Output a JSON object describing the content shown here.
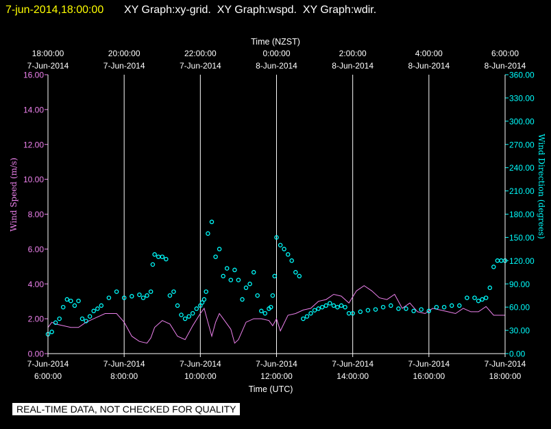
{
  "header": {
    "timestamp": "7-jun-2014,18:00:00",
    "graphs": "XY Graph:xy-grid.  XY Graph:wspd.  XY Graph:wdir."
  },
  "notice": "REAL-TIME DATA, NOT CHECKED FOR QUALITY",
  "colors": {
    "background": "#000000",
    "timestamp": "#ffff00",
    "wind_speed": "#ee82ee",
    "wind_direction": "#00ffff",
    "grid": "#ffffff"
  },
  "chart_data": {
    "type": "line",
    "title": "",
    "top_axis": {
      "label": "Time (NZST)",
      "ticks": [
        {
          "time": "18:00:00",
          "date": "7-Jun-2014"
        },
        {
          "time": "20:00:00",
          "date": "7-Jun-2014"
        },
        {
          "time": "22:00:00",
          "date": "7-Jun-2014"
        },
        {
          "time": "0:00:00",
          "date": "8-Jun-2014"
        },
        {
          "time": "2:00:00",
          "date": "8-Jun-2014"
        },
        {
          "time": "4:00:00",
          "date": "8-Jun-2014"
        },
        {
          "time": "6:00:00",
          "date": "8-Jun-2014"
        }
      ]
    },
    "bottom_axis": {
      "label": "Time (UTC)",
      "ticks": [
        {
          "date": "7-Jun-2014",
          "time": "6:00:00"
        },
        {
          "date": "7-Jun-2014",
          "time": "8:00:00"
        },
        {
          "date": "7-Jun-2014",
          "time": "10:00:00"
        },
        {
          "date": "7-Jun-2014",
          "time": "12:00:00"
        },
        {
          "date": "7-Jun-2014",
          "time": "14:00:00"
        },
        {
          "date": "7-Jun-2014",
          "time": "16:00:00"
        },
        {
          "date": "7-Jun-2014",
          "time": "18:00:00"
        }
      ],
      "xlim": [
        6,
        18
      ]
    },
    "left_axis": {
      "label": "Wind Speed (m/s)",
      "ylim": [
        0,
        16
      ],
      "ticks": [
        "0.00",
        "2.00",
        "4.00",
        "6.00",
        "8.00",
        "10.00",
        "12.00",
        "14.00",
        "16.00"
      ]
    },
    "right_axis": {
      "label": "Wind Direction (degrees)",
      "ylim": [
        0,
        360
      ],
      "ticks": [
        "0.00",
        "30.00",
        "60.00",
        "90.00",
        "120.00",
        "150.00",
        "180.00",
        "210.00",
        "240.00",
        "270.00",
        "300.00",
        "330.00",
        "360.00"
      ]
    },
    "grid": "vertical",
    "series": [
      {
        "name": "wspd",
        "axis": "left",
        "style": "line",
        "x": [
          6.0,
          6.1,
          6.2,
          6.4,
          6.6,
          6.8,
          7.0,
          7.2,
          7.5,
          7.8,
          8.0,
          8.2,
          8.4,
          8.6,
          8.7,
          8.8,
          9.0,
          9.2,
          9.4,
          9.6,
          9.8,
          10.0,
          10.1,
          10.2,
          10.3,
          10.4,
          10.5,
          10.6,
          10.8,
          10.9,
          11.0,
          11.2,
          11.4,
          11.6,
          11.8,
          11.9,
          12.0,
          12.1,
          12.3,
          12.5,
          12.7,
          12.9,
          13.1,
          13.3,
          13.5,
          13.7,
          13.9,
          14.1,
          14.3,
          14.5,
          14.7,
          14.9,
          15.1,
          15.3,
          15.5,
          15.7,
          15.9,
          16.1,
          16.3,
          16.5,
          16.7,
          16.9,
          17.1,
          17.3,
          17.5,
          17.7,
          17.9,
          18.0
        ],
        "y": [
          1.5,
          1.8,
          1.7,
          1.6,
          1.5,
          1.5,
          1.8,
          2.0,
          2.3,
          2.3,
          1.8,
          1.0,
          0.7,
          0.6,
          0.9,
          1.5,
          1.9,
          1.7,
          1.0,
          0.8,
          1.6,
          2.3,
          2.6,
          1.8,
          1.0,
          1.8,
          2.3,
          2.0,
          1.4,
          0.6,
          0.8,
          1.8,
          2.0,
          2.0,
          1.9,
          1.6,
          2.0,
          1.3,
          2.2,
          2.3,
          2.5,
          2.6,
          3.0,
          3.1,
          3.4,
          3.3,
          2.9,
          3.6,
          3.9,
          3.6,
          3.2,
          3.1,
          3.4,
          2.6,
          2.9,
          2.4,
          2.3,
          2.6,
          2.5,
          2.4,
          2.3,
          2.6,
          2.4,
          2.4,
          2.7,
          2.2,
          2.2,
          2.2
        ]
      },
      {
        "name": "wdir",
        "axis": "right",
        "style": "markers",
        "x": [
          6.0,
          6.1,
          6.2,
          6.3,
          6.4,
          6.5,
          6.6,
          6.7,
          6.8,
          6.9,
          7.0,
          7.1,
          7.2,
          7.3,
          7.4,
          7.6,
          7.8,
          8.0,
          8.2,
          8.4,
          8.5,
          8.6,
          8.7,
          8.75,
          8.8,
          8.9,
          9.0,
          9.1,
          9.2,
          9.3,
          9.4,
          9.5,
          9.6,
          9.7,
          9.8,
          9.9,
          10.0,
          10.05,
          10.1,
          10.15,
          10.2,
          10.3,
          10.4,
          10.5,
          10.6,
          10.7,
          10.8,
          10.9,
          11.0,
          11.1,
          11.2,
          11.3,
          11.4,
          11.5,
          11.6,
          11.7,
          11.8,
          11.85,
          11.9,
          11.95,
          12.0,
          12.1,
          12.2,
          12.3,
          12.4,
          12.5,
          12.6,
          12.7,
          12.8,
          12.9,
          13.0,
          13.1,
          13.2,
          13.3,
          13.4,
          13.5,
          13.6,
          13.7,
          13.8,
          13.9,
          14.0,
          14.2,
          14.4,
          14.6,
          14.8,
          15.0,
          15.2,
          15.4,
          15.6,
          15.8,
          16.0,
          16.2,
          16.4,
          16.6,
          16.8,
          17.0,
          17.2,
          17.3,
          17.4,
          17.5,
          17.6,
          17.7,
          17.8,
          17.9,
          18.0
        ],
        "y": [
          25,
          28,
          40,
          45,
          60,
          70,
          68,
          62,
          68,
          45,
          42,
          48,
          55,
          58,
          62,
          72,
          80,
          72,
          74,
          76,
          72,
          75,
          80,
          115,
          128,
          125,
          125,
          122,
          75,
          80,
          62,
          50,
          45,
          48,
          52,
          58,
          62,
          66,
          70,
          80,
          155,
          170,
          125,
          135,
          100,
          110,
          95,
          108,
          95,
          70,
          85,
          90,
          105,
          75,
          55,
          52,
          58,
          60,
          75,
          100,
          150,
          140,
          135,
          128,
          120,
          105,
          100,
          45,
          48,
          52,
          56,
          58,
          60,
          62,
          65,
          62,
          60,
          62,
          60,
          52,
          52,
          54,
          56,
          57,
          60,
          62,
          58,
          58,
          55,
          57,
          55,
          60,
          60,
          62,
          62,
          72,
          72,
          68,
          70,
          72,
          85,
          112,
          120,
          120,
          120
        ]
      }
    ]
  }
}
